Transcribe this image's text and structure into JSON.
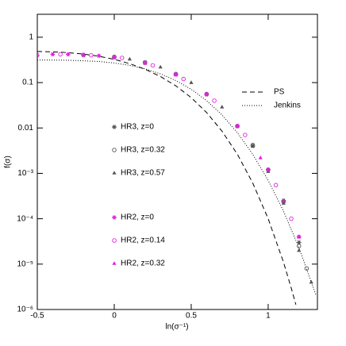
{
  "chart_data": {
    "type": "line",
    "x_label": "ln(σ⁻¹)",
    "y_label": "f(σ)",
    "xlim": [
      -0.5,
      1.32
    ],
    "xticks": [
      -0.5,
      0,
      0.5,
      1
    ],
    "ylim": [
      1e-06,
      3.2
    ],
    "log_y": true,
    "yticks": [
      {
        "value": 1e-06,
        "label": "10⁻⁶"
      },
      {
        "value": 1e-05,
        "label": "10⁻⁵"
      },
      {
        "value": 0.0001,
        "label": "10⁻⁴"
      },
      {
        "value": 0.001,
        "label": "10⁻³"
      },
      0.01,
      0.1,
      1
    ],
    "series": [
      {
        "name": "PS",
        "type": "line",
        "dash": "6,4",
        "color": "#000000",
        "x": [
          -0.5,
          -0.4,
          -0.3,
          -0.2,
          -0.1,
          0,
          0.1,
          0.2,
          0.3,
          0.4,
          0.5,
          0.6,
          0.7,
          0.8,
          0.9,
          1.0,
          1.1,
          1.15,
          1.18
        ],
        "values": [
          0.484,
          0.476,
          0.457,
          0.425,
          0.38,
          0.325,
          0.262,
          0.197,
          0.136,
          0.0849,
          0.0466,
          0.0219,
          0.00851,
          0.00263,
          0.000609,
          0.0001,
          1.09e-05,
          2.96e-06,
          1.28e-06
        ]
      },
      {
        "name": "Jenkins",
        "type": "line",
        "dash": "1,2",
        "color": "#000000",
        "x": [
          -0.5,
          -0.3,
          -0.1,
          0,
          0.1,
          0.2,
          0.3,
          0.4,
          0.5,
          0.6,
          0.7,
          0.8,
          0.9,
          1.0,
          1.1,
          1.2,
          1.3,
          1.31
        ],
        "values": [
          0.315,
          0.311,
          0.292,
          0.27,
          0.24,
          0.201,
          0.156,
          0.111,
          0.0713,
          0.04,
          0.0194,
          0.00787,
          0.00262,
          0.0007,
          0.000146,
          2.3e-05,
          2.6e-06,
          2.1e-06
        ]
      },
      {
        "name": "HR3, z=0",
        "type": "scatter",
        "marker": "star",
        "color": "#555555",
        "x": [
          -0.2,
          0,
          0.2,
          0.4,
          0.6,
          0.8,
          0.9,
          1.0,
          1.1,
          1.2
        ],
        "values": [
          0.4,
          0.36,
          0.27,
          0.15,
          0.055,
          0.011,
          0.004,
          0.0012,
          0.00025,
          3e-05
        ]
      },
      {
        "name": "HR3, z=0.32",
        "type": "scatter",
        "marker": "circle",
        "color": "#555555",
        "x": [
          0,
          0.2,
          0.4,
          0.6,
          0.8,
          0.9,
          1.0,
          1.1,
          1.2,
          1.25
        ],
        "values": [
          0.37,
          0.28,
          0.155,
          0.056,
          0.011,
          0.0042,
          0.0012,
          0.00024,
          2.5e-05,
          8e-06
        ]
      },
      {
        "name": "HR3, z=0.57",
        "type": "scatter",
        "marker": "triangle",
        "color": "#555555",
        "x": [
          0.1,
          0.3,
          0.5,
          0.7,
          0.8,
          0.9,
          1.0,
          1.1,
          1.2,
          1.28
        ],
        "values": [
          0.33,
          0.22,
          0.1,
          0.029,
          0.011,
          0.004,
          0.0011,
          0.00022,
          2e-05,
          4e-06
        ]
      },
      {
        "name": "HR2, z=0",
        "type": "scatter",
        "marker": "star",
        "color": "#e020e0",
        "x": [
          -0.5,
          -0.4,
          -0.3,
          -0.2,
          -0.1,
          0,
          0.2,
          0.4,
          0.6,
          0.8,
          1.0,
          1.2
        ],
        "values": [
          0.4,
          0.42,
          0.42,
          0.41,
          0.39,
          0.36,
          0.27,
          0.15,
          0.055,
          0.011,
          0.0012,
          4e-05
        ]
      },
      {
        "name": "HR2, z=0.14",
        "type": "scatter",
        "marker": "circle",
        "color": "#e020e0",
        "x": [
          -0.35,
          -0.15,
          0.05,
          0.25,
          0.45,
          0.65,
          0.85,
          1.05,
          1.15
        ],
        "values": [
          0.42,
          0.4,
          0.35,
          0.24,
          0.12,
          0.04,
          0.007,
          0.00055,
          0.0001
        ]
      },
      {
        "name": "HR2, z=0.32",
        "type": "scatter",
        "marker": "triangle",
        "color": "#e020e0",
        "x": [
          -0.2,
          0,
          0.2,
          0.4,
          0.6,
          0.8,
          0.95,
          1.1,
          1.2
        ],
        "values": [
          0.41,
          0.36,
          0.27,
          0.15,
          0.055,
          0.011,
          0.0022,
          0.00025,
          4e-05
        ]
      }
    ]
  }
}
